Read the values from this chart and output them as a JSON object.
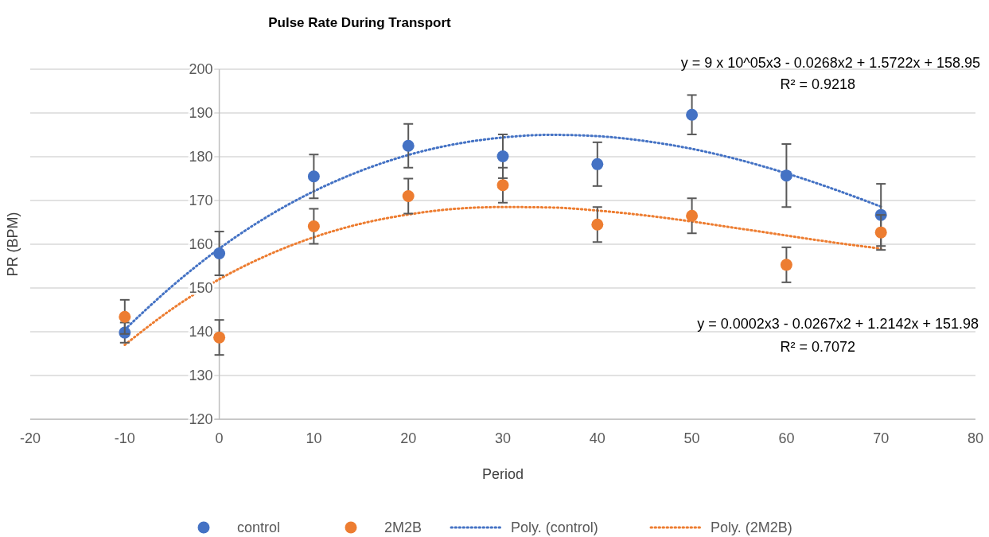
{
  "chart_data": {
    "type": "scatter",
    "title": "Pulse Rate During Transport",
    "xlabel": "Period",
    "ylabel": "PR (BPM)",
    "xlim": [
      -20,
      80
    ],
    "xticks": [
      -20,
      -10,
      0,
      10,
      20,
      30,
      40,
      50,
      60,
      70,
      80
    ],
    "ylim": [
      120,
      200
    ],
    "yticks": [
      120,
      130,
      140,
      150,
      160,
      170,
      180,
      190,
      200
    ],
    "grid": "y",
    "legend": "bottom",
    "annotations": [
      "y = 9 x 10^05x3 - 0.0268x2 + 1.5722x + 158.95",
      "R² = 0.9218",
      "y = 0.0002x3 - 0.0267x2 + 1.2142x + 151.98",
      "R² = 0.7072"
    ],
    "series": [
      {
        "name": "control",
        "marker": "circle",
        "color": "#4472c4",
        "x": [
          -10,
          0,
          10,
          20,
          30,
          40,
          50,
          60,
          70
        ],
        "values": [
          139.8,
          157.9,
          175.5,
          182.5,
          180.1,
          178.3,
          189.6,
          175.7,
          166.7
        ],
        "errors": [
          2.3,
          5,
          5,
          5,
          5,
          5,
          4.5,
          7.2,
          7.1
        ]
      },
      {
        "name": "2M2B",
        "marker": "circle",
        "color": "#ed7d31",
        "x": [
          -10,
          0,
          10,
          20,
          30,
          40,
          50,
          60,
          70
        ],
        "values": [
          143.4,
          138.7,
          164.1,
          171.0,
          173.5,
          164.5,
          166.5,
          155.3,
          162.7
        ],
        "errors": [
          3.9,
          4,
          4,
          4,
          4,
          4,
          4,
          4,
          4
        ]
      },
      {
        "name": "Poly. (control)",
        "type": "line",
        "line_style": "dotted",
        "color": "#4472c4",
        "x": [
          -10,
          -5,
          0,
          5,
          10,
          15,
          20,
          25,
          30,
          35,
          40,
          45,
          50,
          55,
          60,
          65,
          70
        ],
        "values": [
          140.5,
          150.4,
          159.0,
          166.2,
          172.1,
          176.8,
          180.4,
          182.9,
          184.4,
          185.0,
          184.7,
          183.6,
          181.8,
          179.3,
          176.2,
          172.6,
          168.6
        ]
      },
      {
        "name": "Poly. (2M2B)",
        "type": "line",
        "line_style": "dotted",
        "color": "#ed7d31",
        "x": [
          -10,
          -5,
          0,
          5,
          10,
          15,
          20,
          25,
          30,
          35,
          40,
          45,
          50,
          55,
          60,
          65,
          70
        ],
        "values": [
          137.0,
          145.2,
          152.0,
          157.4,
          161.6,
          164.7,
          166.8,
          168.1,
          168.5,
          168.4,
          167.7,
          166.6,
          165.2,
          163.6,
          162.0,
          160.4,
          159.0
        ]
      }
    ]
  }
}
